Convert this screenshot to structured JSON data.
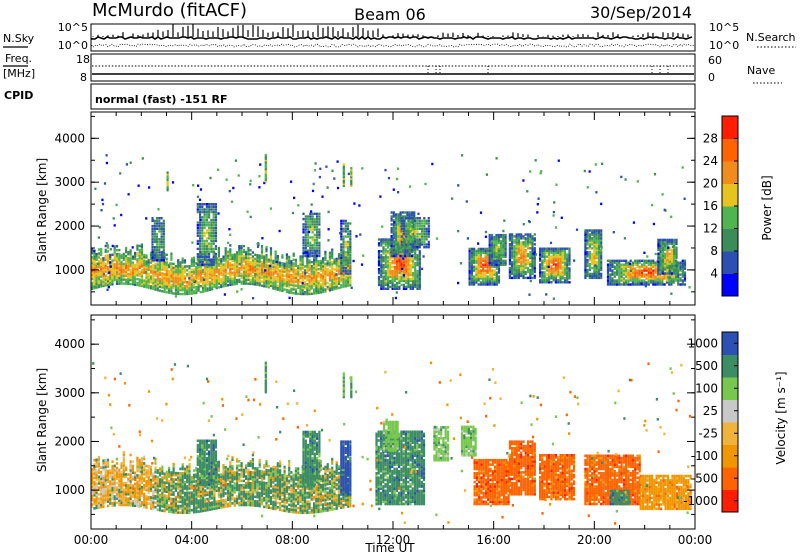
{
  "header": {
    "station": "McMurdo (fitACF)",
    "beam": "Beam 06",
    "date": "30/Sep/2014"
  },
  "noise_panel": {
    "left_label": "N.Sky",
    "right_label": "N.Search",
    "left_ticks": [
      "10^5",
      "10^0"
    ],
    "right_ticks": [
      "10^5",
      "10^0"
    ]
  },
  "freq_panel": {
    "left_label_line1": "Freq.",
    "left_label_line2": "[MHz]",
    "left_ticks": [
      "18",
      "8"
    ],
    "right_label": "Nave",
    "right_ticks": [
      "60",
      "0"
    ],
    "cpid_label": "CPID",
    "mode_text": "normal (fast) -151 RF"
  },
  "colors": {
    "power": [
      "#0000ff",
      "#2d4fb4",
      "#3c8c5a",
      "#50b450",
      "#e6c31e",
      "#f08c1e",
      "#ff6400",
      "#ff1e00"
    ],
    "velocity": [
      "#ff1e00",
      "#ff6400",
      "#f09600",
      "#f0b43c",
      "#c8c8c8",
      "#78c850",
      "#3c8c64",
      "#2d50b4"
    ]
  },
  "chart_data": [
    {
      "type": "heatmap",
      "ylabel": "Slant Range [km]",
      "yticks": [
        "1000",
        "2000",
        "3000",
        "4000"
      ],
      "ylim": [
        200,
        4600
      ],
      "colorbar_label": "Power [dB]",
      "colorbar_ticks": [
        "4",
        "8",
        "12",
        "16",
        "20",
        "24",
        "28"
      ],
      "colorbar_range": [
        0,
        32
      ]
    },
    {
      "type": "heatmap",
      "ylabel": "Slant Range [km]",
      "yticks": [
        "1000",
        "2000",
        "3000",
        "4000"
      ],
      "ylim": [
        200,
        4600
      ],
      "colorbar_label": "Velocity [m s⁻¹]",
      "colorbar_ticks": [
        "-1000",
        "-500",
        "-100",
        "-25",
        "25",
        "100",
        "500",
        "1000"
      ],
      "xlabel": "Time UT",
      "xticks": [
        "00:00",
        "04:00",
        "08:00",
        "12:00",
        "16:00",
        "20:00",
        "00:00"
      ],
      "xlim": [
        "00:00",
        "24:00"
      ]
    }
  ]
}
